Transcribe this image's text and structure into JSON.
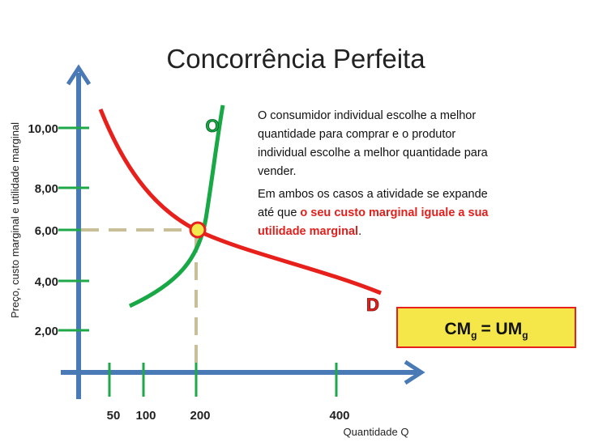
{
  "title": "Concorrência Perfeita",
  "y_axis": {
    "label": "Preço, custo marginal e utilidade marginal",
    "ticks": [
      "10,00",
      "8,00",
      "6,00",
      "4,00",
      "2,00"
    ]
  },
  "x_axis": {
    "label": "Quantidade Q",
    "ticks": [
      "50",
      "100",
      "200",
      "400"
    ]
  },
  "curve_labels": {
    "supply": "O",
    "demand": "D"
  },
  "text": {
    "paragraph_1": [
      "O consumidor individual escolhe a melhor",
      "quantidade para comprar e o produtor",
      "individual escolhe a melhor quantidade para",
      "vender."
    ],
    "paragraph_2": {
      "line_1": "Em ambos os casos a atividade se expande",
      "line_2_start": "até que ",
      "line_2_highlight": "o seu custo marginal iguale a sua",
      "line_3_highlight": "utilidade marginal",
      "line_3_end": "."
    }
  },
  "equation": {
    "left": "CM",
    "left_sub": "g",
    "right": "= UM",
    "right_sub": "g"
  }
}
